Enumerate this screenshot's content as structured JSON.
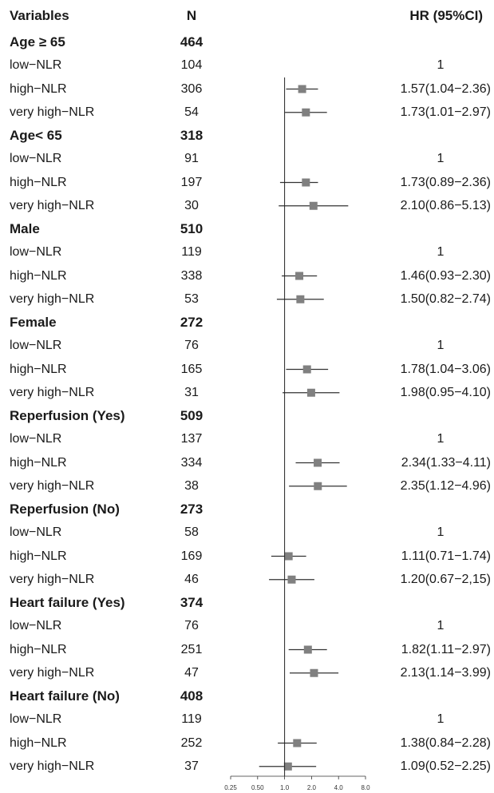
{
  "headers": {
    "variables": "Variables",
    "n": "N",
    "hr": "HR (95%CI)"
  },
  "chart_data": {
    "type": "forest",
    "x_scale": "log2",
    "xlim": [
      0.25,
      8.0
    ],
    "reference_line": 1.0,
    "x_ticks": [
      "0.25",
      "0.50",
      "1.0",
      "2.0",
      "4.0",
      "8.0"
    ],
    "rows": [
      {
        "kind": "group",
        "label": "Age ≥ 65",
        "n": "464"
      },
      {
        "kind": "item",
        "label": "low−NLR",
        "n": "104",
        "hr_text": "1",
        "hr": null,
        "lo": null,
        "hi": null
      },
      {
        "kind": "item",
        "label": "high−NLR",
        "n": "306",
        "hr_text": "1.57(1.04−2.36)",
        "hr": 1.57,
        "lo": 1.04,
        "hi": 2.36
      },
      {
        "kind": "item",
        "label": "very high−NLR",
        "n": "54",
        "hr_text": "1.73(1.01−2.97)",
        "hr": 1.73,
        "lo": 1.01,
        "hi": 2.97
      },
      {
        "kind": "group",
        "label": "Age< 65",
        "n": "318"
      },
      {
        "kind": "item",
        "label": "low−NLR",
        "n": "91",
        "hr_text": "1",
        "hr": null,
        "lo": null,
        "hi": null
      },
      {
        "kind": "item",
        "label": "high−NLR",
        "n": "197",
        "hr_text": "1.73(0.89−2.36)",
        "hr": 1.73,
        "lo": 0.89,
        "hi": 2.36
      },
      {
        "kind": "item",
        "label": "very high−NLR",
        "n": "30",
        "hr_text": "2.10(0.86−5.13)",
        "hr": 2.1,
        "lo": 0.86,
        "hi": 5.13
      },
      {
        "kind": "group",
        "label": "Male",
        "n": "510"
      },
      {
        "kind": "item",
        "label": "low−NLR",
        "n": "119",
        "hr_text": "1",
        "hr": null,
        "lo": null,
        "hi": null
      },
      {
        "kind": "item",
        "label": "high−NLR",
        "n": "338",
        "hr_text": "1.46(0.93−2.30)",
        "hr": 1.46,
        "lo": 0.93,
        "hi": 2.3
      },
      {
        "kind": "item",
        "label": "very high−NLR",
        "n": "53",
        "hr_text": "1.50(0.82−2.74)",
        "hr": 1.5,
        "lo": 0.82,
        "hi": 2.74
      },
      {
        "kind": "group",
        "label": "Female",
        "n": "272"
      },
      {
        "kind": "item",
        "label": "low−NLR",
        "n": "76",
        "hr_text": "1",
        "hr": null,
        "lo": null,
        "hi": null
      },
      {
        "kind": "item",
        "label": "high−NLR",
        "n": "165",
        "hr_text": "1.78(1.04−3.06)",
        "hr": 1.78,
        "lo": 1.04,
        "hi": 3.06
      },
      {
        "kind": "item",
        "label": "very high−NLR",
        "n": "31",
        "hr_text": "1.98(0.95−4.10)",
        "hr": 1.98,
        "lo": 0.95,
        "hi": 4.1
      },
      {
        "kind": "group",
        "label": "Reperfusion (Yes)",
        "n": "509"
      },
      {
        "kind": "item",
        "label": "low−NLR",
        "n": "137",
        "hr_text": "1",
        "hr": null,
        "lo": null,
        "hi": null
      },
      {
        "kind": "item",
        "label": "high−NLR",
        "n": "334",
        "hr_text": "2.34(1.33−4.11)",
        "hr": 2.34,
        "lo": 1.33,
        "hi": 4.11
      },
      {
        "kind": "item",
        "label": "very high−NLR",
        "n": "38",
        "hr_text": "2.35(1.12−4.96)",
        "hr": 2.35,
        "lo": 1.12,
        "hi": 4.96
      },
      {
        "kind": "group",
        "label": "Reperfusion (No)",
        "n": "273"
      },
      {
        "kind": "item",
        "label": "low−NLR",
        "n": "58",
        "hr_text": "1",
        "hr": null,
        "lo": null,
        "hi": null
      },
      {
        "kind": "item",
        "label": "high−NLR",
        "n": "169",
        "hr_text": "1.11(0.71−1.74)",
        "hr": 1.11,
        "lo": 0.71,
        "hi": 1.74
      },
      {
        "kind": "item",
        "label": "very high−NLR",
        "n": "46",
        "hr_text": "1.20(0.67−2,15)",
        "hr": 1.2,
        "lo": 0.67,
        "hi": 2.15
      },
      {
        "kind": "group",
        "label": "Heart failure (Yes)",
        "n": "374"
      },
      {
        "kind": "item",
        "label": "low−NLR",
        "n": "76",
        "hr_text": "1",
        "hr": null,
        "lo": null,
        "hi": null
      },
      {
        "kind": "item",
        "label": "high−NLR",
        "n": "251",
        "hr_text": "1.82(1.11−2.97)",
        "hr": 1.82,
        "lo": 1.11,
        "hi": 2.97
      },
      {
        "kind": "item",
        "label": "very high−NLR",
        "n": "47",
        "hr_text": "2.13(1.14−3.99)",
        "hr": 2.13,
        "lo": 1.14,
        "hi": 3.99
      },
      {
        "kind": "group",
        "label": "Heart failure (No)",
        "n": "408"
      },
      {
        "kind": "item",
        "label": "low−NLR",
        "n": "119",
        "hr_text": "1",
        "hr": null,
        "lo": null,
        "hi": null
      },
      {
        "kind": "item",
        "label": "high−NLR",
        "n": "252",
        "hr_text": "1.38(0.84−2.28)",
        "hr": 1.38,
        "lo": 0.84,
        "hi": 2.28
      },
      {
        "kind": "item",
        "label": "very high−NLR",
        "n": "37",
        "hr_text": "1.09(0.52−2.25)",
        "hr": 1.09,
        "lo": 0.52,
        "hi": 2.25
      }
    ],
    "colors": {
      "marker": "#808080",
      "line": "#333333"
    }
  }
}
